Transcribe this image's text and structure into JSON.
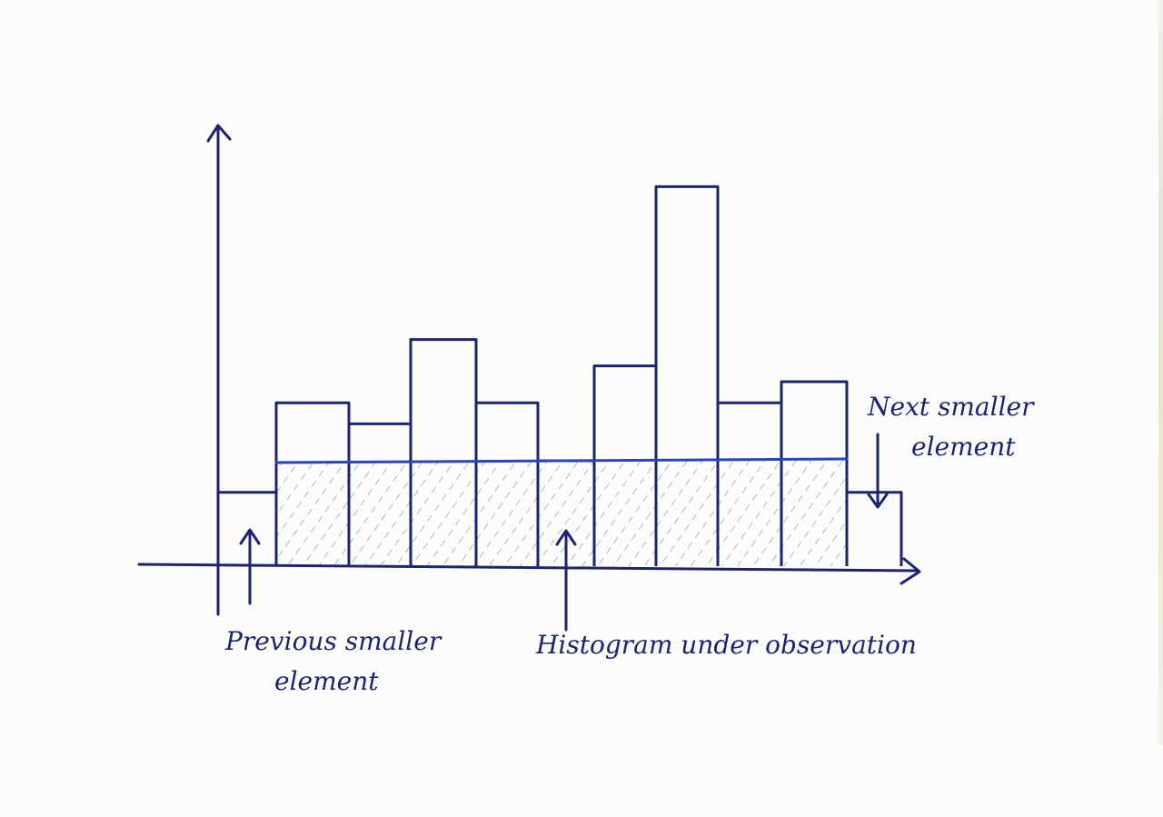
{
  "chart_data": {
    "type": "bar",
    "values": [
      1.4,
      3.1,
      2.7,
      4.3,
      3.1,
      2.0,
      3.8,
      7.2,
      3.1,
      3.5,
      1.4
    ],
    "highlight_level": 2.0,
    "annotations": [
      {
        "text": [
          "Previous smaller",
          "element"
        ],
        "target_bar": 0
      },
      {
        "text": [
          "Histogram under observation"
        ],
        "target_bar": 5
      },
      {
        "text": [
          "Next smaller",
          "element"
        ],
        "target_bar": 10
      }
    ],
    "shaded_range": {
      "from_bar": 1,
      "to_bar": 9
    }
  },
  "labels": {
    "previous": [
      "Previous smaller",
      "element"
    ],
    "histogram": "Histogram under observation",
    "next": [
      "Next smaller",
      "element"
    ]
  },
  "colors": {
    "ink": "#1c2470",
    "highlight_line": "#2a45b8",
    "paper": "#fcfcfa"
  }
}
